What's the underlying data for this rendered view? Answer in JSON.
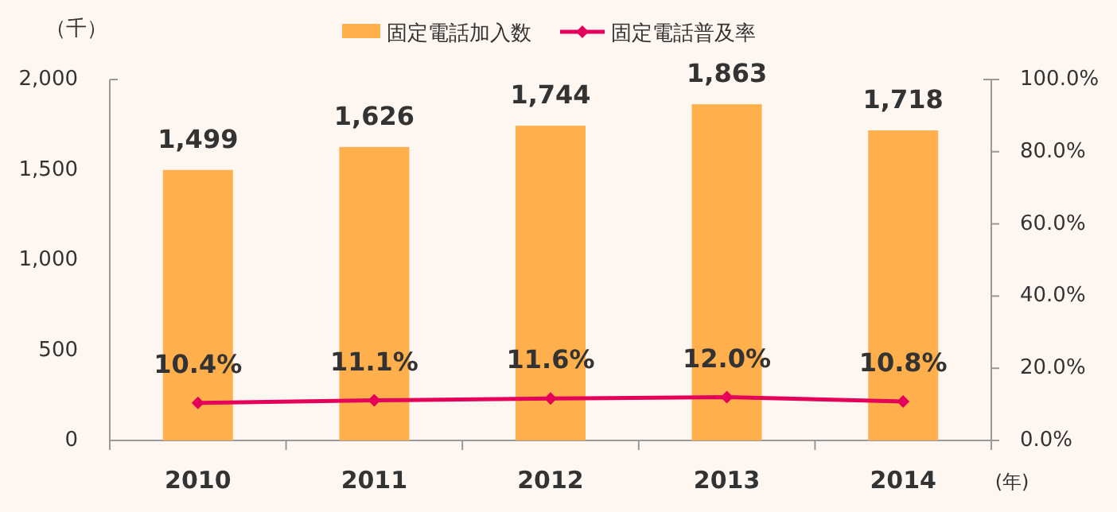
{
  "chart_data": {
    "type": "bar",
    "ylabel": "（千）",
    "xlabel": "(年)",
    "categories": [
      "2010",
      "2011",
      "2012",
      "2013",
      "2014"
    ],
    "series": [
      {
        "name": "固定電話加入数",
        "color": "#ffb04c",
        "values": [
          1499,
          1626,
          1744,
          1863,
          1718
        ],
        "value_labels": [
          "1,499",
          "1,626",
          "1,744",
          "1,863",
          "1,718"
        ]
      },
      {
        "name": "固定電話普及率",
        "type": "line",
        "axis": "y2",
        "color": "#e5005a",
        "marker": "diamond",
        "values": [
          10.4,
          11.1,
          11.6,
          12.0,
          10.8
        ],
        "value_labels": [
          "10.4%",
          "11.1%",
          "11.6%",
          "12.0%",
          "10.8%"
        ]
      }
    ],
    "ylim": [
      0,
      2000
    ],
    "yticks": [
      0,
      {
        "value": 500,
        "label": "500"
      },
      {
        "value": 1000,
        "label": "1,000"
      },
      {
        "value": 1500,
        "label": "1,500"
      },
      {
        "value": 2000,
        "label": "2,000"
      }
    ],
    "y2lim": [
      0,
      100
    ],
    "y2ticks": [
      {
        "value": 0,
        "label": "0.0%"
      },
      {
        "value": 20,
        "label": "20.0%"
      },
      {
        "value": 40,
        "label": "40.0%"
      },
      {
        "value": 60,
        "label": "60.0%"
      },
      {
        "value": 80,
        "label": "80.0%"
      },
      {
        "value": 100,
        "label": "100.0%"
      }
    ],
    "grid": false,
    "legend": "top"
  }
}
